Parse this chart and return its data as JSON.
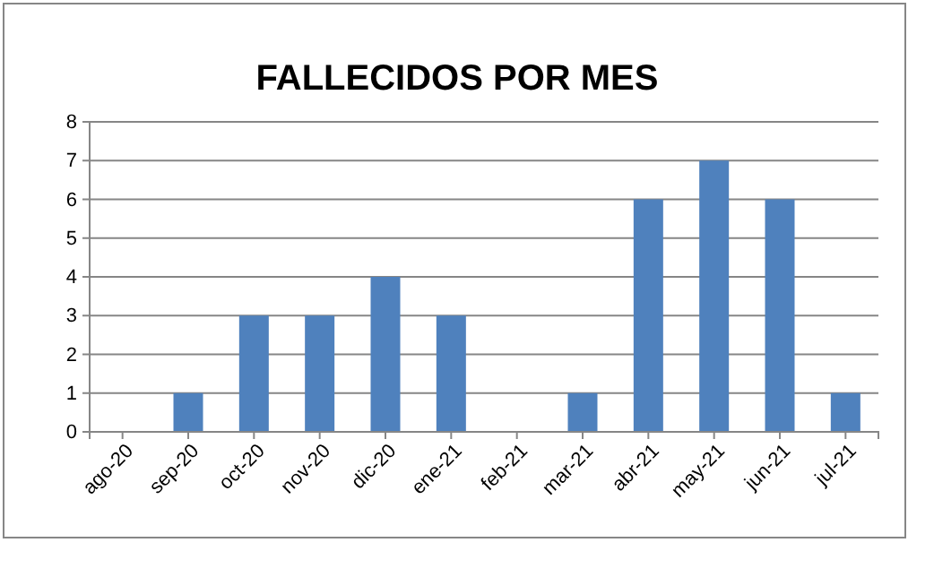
{
  "chart_data": {
    "type": "bar",
    "title": "FALLECIDOS POR MES",
    "categories": [
      "ago-20",
      "sep-20",
      "oct-20",
      "nov-20",
      "dic-20",
      "ene-21",
      "feb-21",
      "mar-21",
      "abr-21",
      "may-21",
      "jun-21",
      "jul-21"
    ],
    "values": [
      0,
      1,
      3,
      3,
      4,
      3,
      0,
      1,
      6,
      7,
      6,
      1
    ],
    "color": "#4f81bd",
    "ylim": [
      0,
      8
    ],
    "yticks": [
      0,
      1,
      2,
      3,
      4,
      5,
      6,
      7,
      8
    ],
    "grid": "y"
  }
}
